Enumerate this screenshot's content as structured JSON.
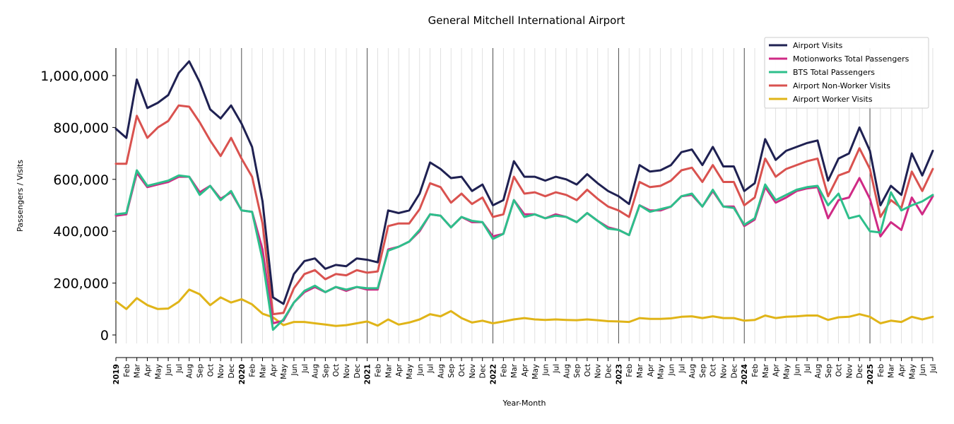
{
  "chart_data": {
    "type": "line",
    "title": "General Mitchell International Airport",
    "xlabel": "Year-Month",
    "ylabel": "Passengers / Visits",
    "ylim": [
      0,
      1100000
    ],
    "yticks": [
      0,
      200000,
      400000,
      600000,
      800000,
      1000000
    ],
    "ytick_labels": [
      "0",
      "200,000",
      "400,000",
      "600,000",
      "800,000",
      "1,000,000"
    ],
    "grid": "vertical minor lines per month; darker lines at each January",
    "legend_position": "top-right",
    "month_labels": [
      "Jan",
      "Feb",
      "Mar",
      "Apr",
      "May",
      "Jun",
      "Jul",
      "Aug",
      "Sep",
      "Oct",
      "Nov",
      "Dec"
    ],
    "years": [
      "2019",
      "2020",
      "2021",
      "2022",
      "2023",
      "2024",
      "2025"
    ],
    "x_start": "2019-01",
    "x_end": "2025-07",
    "series": [
      {
        "name": "Airport Visits",
        "color": "#1f2152",
        "values": [
          795000,
          760000,
          985000,
          875000,
          895000,
          925000,
          1010000,
          1055000,
          975000,
          870000,
          835000,
          885000,
          815000,
          725000,
          515000,
          145000,
          120000,
          235000,
          285000,
          295000,
          255000,
          270000,
          265000,
          295000,
          290000,
          280000,
          480000,
          470000,
          480000,
          545000,
          665000,
          640000,
          605000,
          610000,
          555000,
          580000,
          500000,
          520000,
          670000,
          610000,
          610000,
          595000,
          610000,
          600000,
          580000,
          620000,
          585000,
          555000,
          535000,
          505000,
          655000,
          630000,
          635000,
          655000,
          705000,
          715000,
          655000,
          725000,
          650000,
          650000,
          555000,
          585000,
          755000,
          675000,
          710000,
          725000,
          740000,
          750000,
          595000,
          680000,
          700000,
          800000,
          710000,
          500000,
          575000,
          540000,
          700000,
          615000,
          710000
        ]
      },
      {
        "name": "Motionworks Total Passengers",
        "color": "#cf2a85",
        "values": [
          460000,
          465000,
          625000,
          570000,
          580000,
          590000,
          610000,
          610000,
          550000,
          575000,
          525000,
          550000,
          480000,
          475000,
          330000,
          45000,
          55000,
          125000,
          165000,
          185000,
          165000,
          185000,
          170000,
          185000,
          175000,
          175000,
          330000,
          340000,
          360000,
          400000,
          465000,
          460000,
          415000,
          455000,
          435000,
          435000,
          380000,
          390000,
          520000,
          465000,
          465000,
          450000,
          465000,
          455000,
          435000,
          470000,
          440000,
          415000,
          405000,
          385000,
          500000,
          480000,
          480000,
          495000,
          535000,
          540000,
          495000,
          555000,
          495000,
          495000,
          420000,
          445000,
          570000,
          510000,
          530000,
          555000,
          565000,
          570000,
          450000,
          520000,
          530000,
          605000,
          525000,
          380000,
          435000,
          405000,
          530000,
          465000,
          535000
        ]
      },
      {
        "name": "BTS Total Passengers",
        "color": "#2dbf8b",
        "values": [
          465000,
          470000,
          635000,
          575000,
          585000,
          595000,
          615000,
          610000,
          540000,
          575000,
          520000,
          555000,
          480000,
          475000,
          290000,
          20000,
          60000,
          125000,
          170000,
          190000,
          165000,
          185000,
          175000,
          185000,
          180000,
          180000,
          325000,
          340000,
          360000,
          405000,
          465000,
          460000,
          415000,
          455000,
          440000,
          435000,
          370000,
          390000,
          520000,
          455000,
          465000,
          450000,
          460000,
          455000,
          435000,
          470000,
          440000,
          410000,
          405000,
          385000,
          500000,
          475000,
          485000,
          495000,
          535000,
          545000,
          495000,
          560000,
          495000,
          490000,
          425000,
          450000,
          580000,
          520000,
          540000,
          560000,
          570000,
          575000,
          500000,
          545000,
          450000,
          460000,
          400000,
          395000,
          550000,
          480000,
          500000,
          515000,
          540000
        ]
      },
      {
        "name": "Airport Non-Worker Visits",
        "color": "#d9524f",
        "values": [
          660000,
          660000,
          845000,
          760000,
          800000,
          825000,
          885000,
          880000,
          820000,
          750000,
          690000,
          760000,
          680000,
          610000,
          430000,
          80000,
          85000,
          180000,
          235000,
          250000,
          215000,
          235000,
          230000,
          250000,
          240000,
          245000,
          420000,
          430000,
          430000,
          485000,
          585000,
          570000,
          510000,
          545000,
          505000,
          530000,
          455000,
          465000,
          610000,
          545000,
          550000,
          535000,
          550000,
          540000,
          520000,
          560000,
          525000,
          495000,
          480000,
          455000,
          590000,
          570000,
          575000,
          595000,
          635000,
          645000,
          590000,
          655000,
          590000,
          590000,
          500000,
          530000,
          680000,
          610000,
          640000,
          655000,
          670000,
          680000,
          535000,
          615000,
          630000,
          720000,
          640000,
          455000,
          520000,
          490000,
          630000,
          555000,
          640000
        ]
      },
      {
        "name": "Airport Worker Visits",
        "color": "#e0b418",
        "values": [
          130000,
          100000,
          142000,
          115000,
          100000,
          102000,
          128000,
          175000,
          157000,
          115000,
          145000,
          125000,
          138000,
          118000,
          82000,
          68000,
          38000,
          50000,
          50000,
          45000,
          40000,
          35000,
          38000,
          45000,
          52000,
          36000,
          60000,
          40000,
          48000,
          60000,
          80000,
          72000,
          92000,
          65000,
          48000,
          55000,
          45000,
          52000,
          60000,
          65000,
          60000,
          58000,
          60000,
          58000,
          57000,
          60000,
          57000,
          53000,
          52000,
          50000,
          65000,
          62000,
          62000,
          64000,
          70000,
          72000,
          65000,
          72000,
          65000,
          65000,
          55000,
          58000,
          75000,
          65000,
          70000,
          72000,
          75000,
          75000,
          58000,
          68000,
          70000,
          80000,
          70000,
          45000,
          55000,
          50000,
          70000,
          60000,
          70000
        ]
      }
    ]
  }
}
